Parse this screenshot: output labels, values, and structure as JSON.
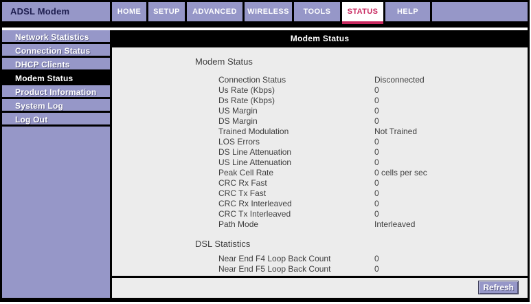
{
  "colors": {
    "purple": "#9697c8",
    "accent-crimson": "#c8285f",
    "content-bg": "#ececec",
    "title-ink": "#1d1d4e",
    "text": "#3f3f3f"
  },
  "app": {
    "title": "ADSL Modem"
  },
  "nav": {
    "items": [
      {
        "id": "nav-tab-home",
        "label": "HOME",
        "active": false
      },
      {
        "id": "nav-tab-setup",
        "label": "SETUP",
        "active": false
      },
      {
        "id": "nav-tab-advanced",
        "label": "ADVANCED",
        "active": false
      },
      {
        "id": "nav-tab-wireless",
        "label": "WIRELESS",
        "active": false
      },
      {
        "id": "nav-tab-tools",
        "label": "TOOLS",
        "active": false
      },
      {
        "id": "nav-tab-status",
        "label": "STATUS",
        "active": true
      },
      {
        "id": "nav-tab-help",
        "label": "HELP",
        "active": false
      }
    ]
  },
  "sidebar": {
    "items": [
      {
        "id": "sidebar-item-network-statistics",
        "label": "Network Statistics",
        "active": false
      },
      {
        "id": "sidebar-item-connection-status",
        "label": "Connection Status",
        "active": false
      },
      {
        "id": "sidebar-item-dhcp-clients",
        "label": "DHCP Clients",
        "active": false
      },
      {
        "id": "sidebar-item-modem-status",
        "label": "Modem Status",
        "active": true
      },
      {
        "id": "sidebar-item-product-information",
        "label": "Product Information",
        "active": false
      },
      {
        "id": "sidebar-item-system-log",
        "label": "System Log",
        "active": false
      },
      {
        "id": "sidebar-item-log-out",
        "label": "Log Out",
        "active": false
      }
    ]
  },
  "main": {
    "header_title": "Modem Status",
    "sections": [
      {
        "heading": "Modem Status",
        "rows": [
          {
            "label": "Connection Status",
            "value": "Disconnected"
          },
          {
            "label": "Us Rate (Kbps)",
            "value": "0"
          },
          {
            "label": "Ds Rate (Kbps)",
            "value": "0"
          },
          {
            "label": "US Margin",
            "value": "0"
          },
          {
            "label": "DS Margin",
            "value": "0"
          },
          {
            "label": "Trained Modulation",
            "value": "Not Trained"
          },
          {
            "label": "LOS Errors",
            "value": "0"
          },
          {
            "label": "DS Line Attenuation",
            "value": "0"
          },
          {
            "label": "US Line Attenuation",
            "value": "0"
          },
          {
            "label": "Peak Cell Rate",
            "value": "0 cells per sec"
          },
          {
            "label": "CRC Rx Fast",
            "value": "0"
          },
          {
            "label": "CRC Tx Fast",
            "value": "0"
          },
          {
            "label": "CRC Rx Interleaved",
            "value": "0"
          },
          {
            "label": "CRC Tx Interleaved",
            "value": "0"
          },
          {
            "label": "Path Mode",
            "value": "Interleaved"
          }
        ]
      },
      {
        "heading": "DSL Statistics",
        "rows": [
          {
            "label": "Near End F4 Loop Back Count",
            "value": "0"
          },
          {
            "label": "Near End F5 Loop Back Count",
            "value": "0"
          }
        ]
      }
    ],
    "footer": {
      "refresh_label": "Refresh"
    }
  }
}
